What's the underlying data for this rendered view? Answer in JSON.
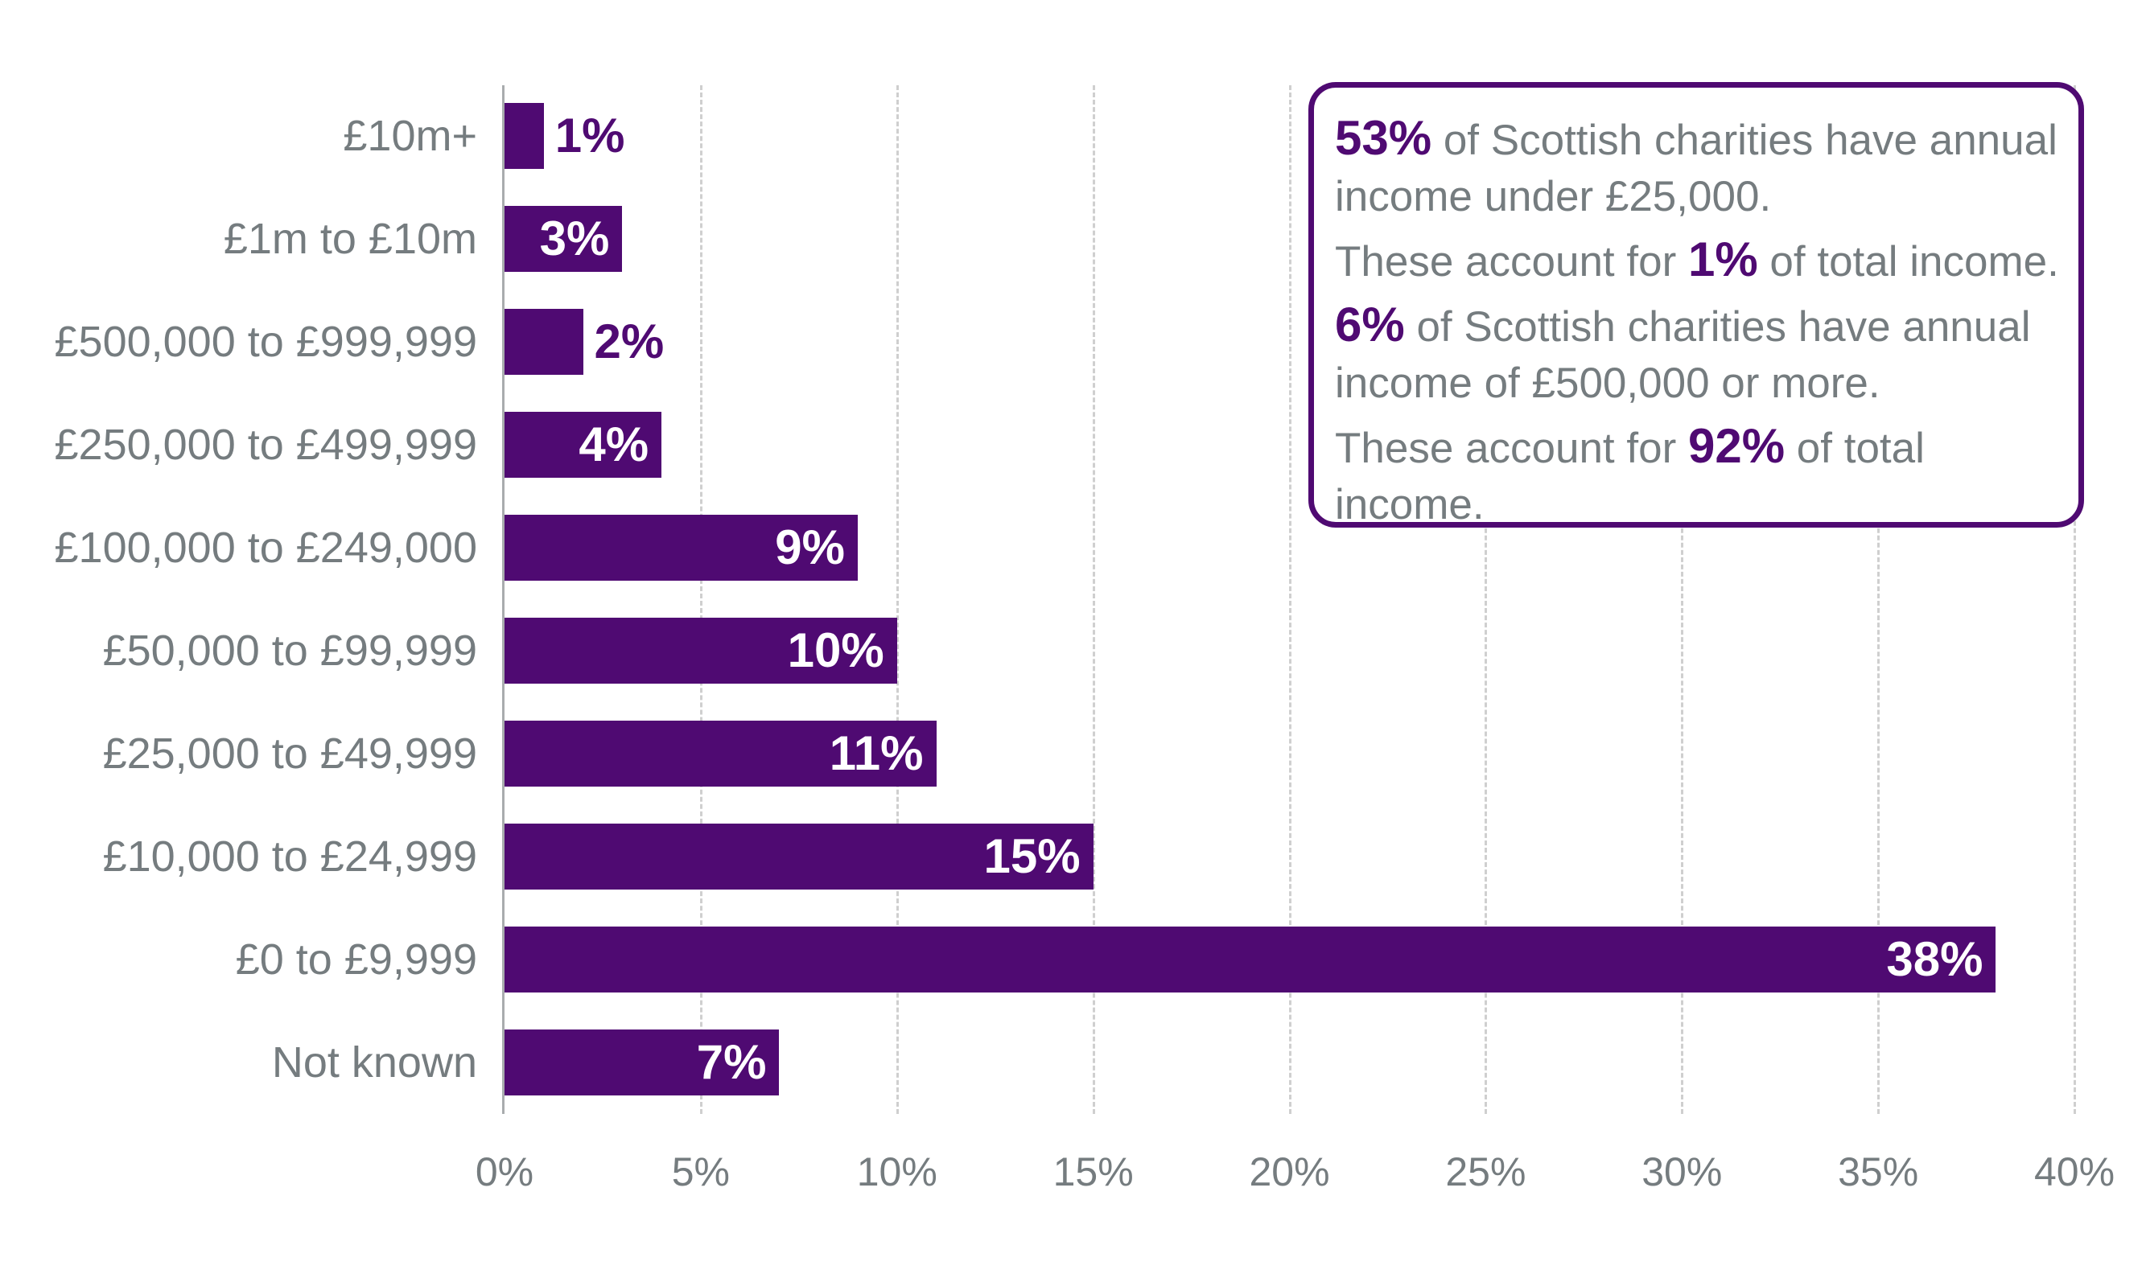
{
  "chart_data": {
    "type": "bar",
    "orientation": "horizontal",
    "title": "",
    "xlabel": "",
    "ylabel": "",
    "categories": [
      "£10m+",
      "£1m to £10m",
      "£500,000 to £999,999",
      "£250,000 to £499,999",
      "£100,000 to £249,000",
      "£50,000 to £99,999",
      "£25,000 to £49,999",
      "£10,000 to £24,999",
      "£0 to £9,999",
      "Not known"
    ],
    "values": [
      1,
      3,
      2,
      4,
      9,
      10,
      11,
      15,
      38,
      7
    ],
    "value_labels": [
      "1%",
      "3%",
      "2%",
      "4%",
      "9%",
      "10%",
      "11%",
      "15%",
      "38%",
      "7%"
    ],
    "xlim": [
      0,
      40
    ],
    "x_ticks": [
      "0%",
      "5%",
      "10%",
      "15%",
      "20%",
      "25%",
      "30%",
      "35%",
      "40%"
    ],
    "grid": "vertical dashed",
    "legend": null,
    "bar_color": "#4f0a72",
    "annotation": [
      {
        "highlight": "53%",
        "text": " of Scottish charities have annual income under £25,000."
      },
      {
        "prefix": "These account for ",
        "highlight": "1%",
        "text": " of total income."
      },
      {
        "highlight": "6%",
        "text": " of Scottish charities have annual income of £500,000 or more."
      },
      {
        "prefix": "These account for ",
        "highlight": "92%",
        "text": " of total income."
      }
    ]
  },
  "colors": {
    "bar": "#4f0a72",
    "label": "#757c7f",
    "grid": "#cfcfcf",
    "axis": "#a9acae"
  }
}
